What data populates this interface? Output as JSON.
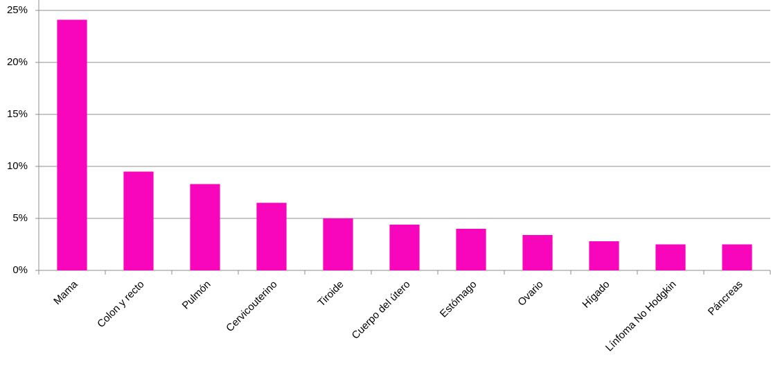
{
  "chart_data": {
    "type": "bar",
    "categories": [
      "Mama",
      "Colon y recto",
      "Pulmón",
      "Cervicouterino",
      "Tiroide",
      "Cuerpo del útero",
      "Estómago",
      "Ovario",
      "Hígado",
      "Línfoma No Hodgkin",
      "Páncreas"
    ],
    "values": [
      24.1,
      9.5,
      8.3,
      6.5,
      5.0,
      4.4,
      4.0,
      3.4,
      2.8,
      2.5,
      2.5
    ],
    "color": "#f706bb",
    "ylim": [
      0,
      25
    ],
    "yticks": [
      {
        "value": 0,
        "label": "0%"
      },
      {
        "value": 5,
        "label": "5%"
      },
      {
        "value": 10,
        "label": "10%"
      },
      {
        "value": 15,
        "label": "15%"
      },
      {
        "value": 20,
        "label": "20%"
      },
      {
        "value": 25,
        "label": "25%"
      }
    ],
    "grid": true
  }
}
